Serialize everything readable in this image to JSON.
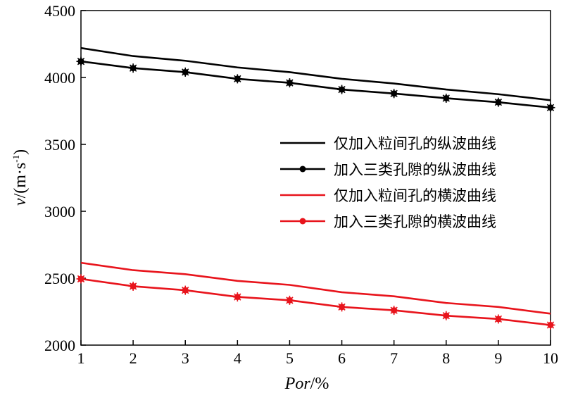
{
  "chart_data": {
    "type": "line",
    "x": [
      1,
      2,
      3,
      4,
      5,
      6,
      7,
      8,
      9,
      10
    ],
    "xlim": [
      1,
      10
    ],
    "ylim": [
      2000,
      4500
    ],
    "x_ticks": [
      "1",
      "2",
      "3",
      "4",
      "5",
      "6",
      "7",
      "8",
      "9",
      "10"
    ],
    "y_ticks": [
      "2000",
      "2500",
      "3000",
      "3500",
      "4000",
      "4500"
    ],
    "xlabel": "Por/%",
    "ylabel": "v/(m·s⁻¹)",
    "grid": false,
    "legend_position": "center-right",
    "series": [
      {
        "name": "仅加入粒间孔的纵波曲线",
        "color": "#000000",
        "marker": false,
        "values": [
          4220,
          4160,
          4125,
          4075,
          4040,
          3990,
          3955,
          3910,
          3875,
          3830
        ]
      },
      {
        "name": "加入三类孔隙的纵波曲线",
        "color": "#000000",
        "marker": true,
        "values": [
          4120,
          4070,
          4040,
          3990,
          3960,
          3910,
          3880,
          3845,
          3815,
          3775
        ]
      },
      {
        "name": "仅加入粒间孔的横波曲线",
        "color": "#e8141c",
        "marker": false,
        "values": [
          2615,
          2560,
          2530,
          2480,
          2450,
          2395,
          2365,
          2315,
          2285,
          2235
        ]
      },
      {
        "name": "加入三类孔隙的横波曲线",
        "color": "#e8141c",
        "marker": true,
        "values": [
          2495,
          2440,
          2410,
          2360,
          2335,
          2285,
          2260,
          2220,
          2195,
          2150
        ]
      }
    ]
  }
}
